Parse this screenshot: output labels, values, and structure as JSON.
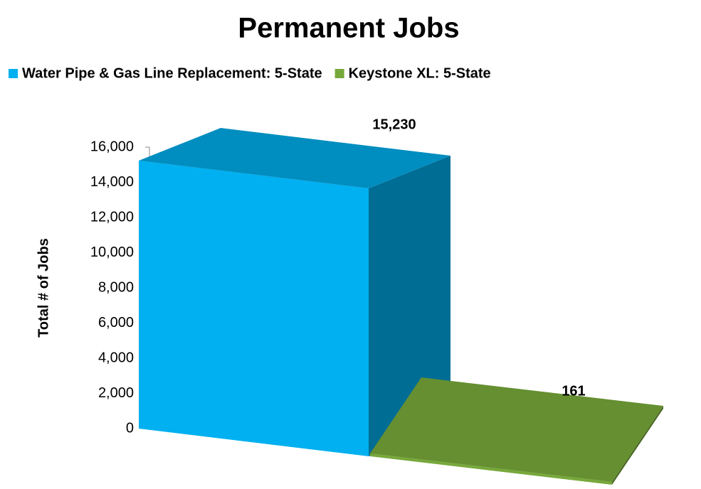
{
  "chart_data": {
    "type": "bar3d",
    "title": "Permanent Jobs",
    "y_label": "Total # of Jobs",
    "series": [
      {
        "name": "Water Pipe & Gas Line Replacement: 5-State",
        "color": "#00b0f0",
        "values": [
          15230
        ],
        "value_labels": [
          "15,230"
        ]
      },
      {
        "name": "Keystone XL: 5-State",
        "color": "#77a83a",
        "values": [
          161
        ],
        "value_labels": [
          "161"
        ]
      }
    ],
    "ylim": [
      0,
      16000
    ],
    "yticks": [
      0,
      {
        "value": 2000,
        "label": "2,000"
      },
      {
        "value": 4000,
        "label": "4,000"
      },
      {
        "value": 6000,
        "label": "6,000"
      },
      {
        "value": 8000,
        "label": "8,000"
      },
      {
        "value": 10000,
        "label": "10,000"
      },
      {
        "value": 12000,
        "label": "12,000"
      },
      {
        "value": 14000,
        "label": "14,000"
      },
      {
        "value": 16000,
        "label": "16,000"
      }
    ],
    "legend": "top"
  }
}
